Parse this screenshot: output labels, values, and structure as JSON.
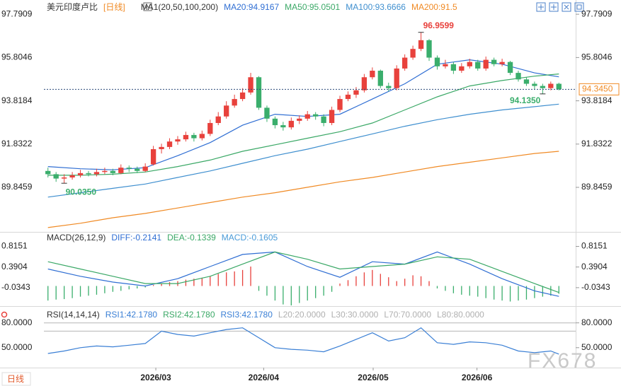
{
  "chart_data": [
    {
      "type": "candlestick",
      "title": "美元印度卢比",
      "period": "[日线]",
      "indicator": "MA1(20,50,100,200)",
      "xlim": [
        -0.5,
        63.5
      ],
      "xticks": [
        {
          "value": 13.3,
          "label": "2026/03"
        },
        {
          "value": 26.6,
          "label": "2026/04"
        },
        {
          "value": 40.1,
          "label": "2026/05"
        },
        {
          "value": 52.9,
          "label": "2026/06"
        }
      ],
      "ylim": [
        87.9,
        98.12
      ],
      "yticks": [
        97.7909,
        95.8046,
        93.8184,
        91.8322,
        89.8459
      ],
      "up_color": "#e8413c",
      "down_color": "#3aae6c",
      "open": [
        90.6,
        90.45,
        90.25,
        90.3,
        90.4,
        90.5,
        90.45,
        90.55,
        90.6,
        90.5,
        90.75,
        90.7,
        90.6,
        90.9,
        91.6,
        91.7,
        91.95,
        92.05,
        92.25,
        92.1,
        92.3,
        92.8,
        93.1,
        93.6,
        93.9,
        94.2,
        94.9,
        93.5,
        93.0,
        92.7,
        92.6,
        92.9,
        93.0,
        93.2,
        93.1,
        92.8,
        93.4,
        93.9,
        94.1,
        94.3,
        94.9,
        95.2,
        94.5,
        94.4,
        95.3,
        95.8,
        96.2,
        96.6,
        95.8,
        95.4,
        95.5,
        95.2,
        95.4,
        95.6,
        95.3,
        95.7,
        95.5,
        95.6,
        95.1,
        94.8,
        94.6,
        94.5,
        94.4,
        94.6
      ],
      "high": [
        90.75,
        90.55,
        90.45,
        90.55,
        90.65,
        90.6,
        90.7,
        90.75,
        90.7,
        90.9,
        90.85,
        90.8,
        90.95,
        91.75,
        91.85,
        92.1,
        92.2,
        92.4,
        92.35,
        92.45,
        92.95,
        93.3,
        93.8,
        94.1,
        94.4,
        95.1,
        94.95,
        93.6,
        93.1,
        92.85,
        93.05,
        93.15,
        93.35,
        93.3,
        93.2,
        93.55,
        94.05,
        94.25,
        94.45,
        95.05,
        95.35,
        95.25,
        94.65,
        95.45,
        95.95,
        96.35,
        96.9599,
        96.65,
        95.9,
        95.7,
        95.6,
        95.55,
        95.75,
        95.7,
        95.85,
        95.8,
        95.75,
        95.65,
        95.2,
        94.9,
        94.7,
        94.6,
        94.7,
        94.65
      ],
      "low": [
        90.3,
        90.1,
        90.035,
        90.2,
        90.3,
        90.35,
        90.35,
        90.45,
        90.4,
        90.45,
        90.55,
        90.5,
        90.55,
        90.85,
        91.4,
        91.6,
        91.8,
        91.95,
        91.95,
        92.0,
        92.2,
        92.7,
        93.0,
        93.5,
        93.8,
        94.1,
        93.4,
        92.85,
        92.55,
        92.45,
        92.5,
        92.75,
        92.9,
        92.95,
        92.65,
        92.7,
        93.3,
        93.8,
        93.95,
        94.2,
        94.8,
        94.4,
        94.25,
        94.3,
        95.2,
        95.7,
        96.1,
        95.65,
        95.25,
        95.3,
        95.05,
        95.1,
        95.3,
        95.2,
        95.2,
        95.4,
        95.4,
        95.0,
        94.7,
        94.5,
        94.35,
        94.135,
        94.3,
        94.3
      ],
      "close": [
        90.45,
        90.25,
        90.3,
        90.4,
        90.5,
        90.45,
        90.55,
        90.6,
        90.5,
        90.75,
        90.7,
        90.6,
        90.8,
        91.6,
        91.7,
        91.95,
        92.05,
        92.25,
        92.1,
        92.3,
        92.8,
        93.1,
        93.6,
        93.9,
        94.2,
        94.9,
        93.5,
        93.0,
        92.7,
        92.6,
        92.9,
        93.0,
        93.2,
        93.1,
        92.8,
        93.4,
        93.9,
        94.1,
        94.3,
        94.9,
        95.2,
        94.5,
        94.4,
        95.3,
        95.8,
        96.2,
        96.6,
        95.8,
        95.4,
        95.5,
        95.2,
        95.4,
        95.6,
        95.3,
        95.7,
        95.5,
        95.6,
        95.1,
        94.8,
        94.6,
        94.5,
        94.4,
        94.6,
        94.345
      ],
      "series": [
        {
          "name": "MA20:94.9167",
          "color": "#2f6ed3",
          "x": [
            0,
            4,
            8,
            12,
            16,
            20,
            24,
            28,
            32,
            36,
            40,
            44,
            48,
            52,
            56,
            60,
            63
          ],
          "values": [
            90.8,
            90.7,
            90.65,
            90.75,
            91.3,
            91.9,
            92.7,
            93.2,
            93.1,
            93.2,
            93.9,
            94.6,
            95.5,
            95.7,
            95.5,
            95.1,
            94.9167
          ]
        },
        {
          "name": "MA50:95.0501",
          "color": "#3aa866",
          "x": [
            0,
            4,
            8,
            12,
            16,
            20,
            24,
            28,
            32,
            36,
            40,
            44,
            48,
            52,
            56,
            60,
            63
          ],
          "values": [
            90.4,
            90.4,
            90.45,
            90.55,
            90.8,
            91.1,
            91.5,
            91.8,
            92.1,
            92.4,
            92.8,
            93.4,
            94.0,
            94.5,
            94.75,
            94.95,
            95.0501
          ]
        },
        {
          "name": "MA100:93.6666",
          "color": "#3f8fcf",
          "x": [
            0,
            4,
            8,
            12,
            16,
            20,
            24,
            28,
            32,
            36,
            40,
            44,
            48,
            52,
            56,
            60,
            63
          ],
          "values": [
            89.4,
            89.6,
            89.8,
            90.0,
            90.3,
            90.6,
            90.95,
            91.3,
            91.6,
            91.95,
            92.3,
            92.65,
            92.95,
            93.2,
            93.4,
            93.55,
            93.6666
          ]
        },
        {
          "name": "MA200:91.5",
          "color": "#f08a24",
          "x": [
            0,
            4,
            8,
            12,
            16,
            20,
            24,
            28,
            32,
            36,
            40,
            44,
            48,
            52,
            56,
            60,
            63
          ],
          "values": [
            88.0,
            88.2,
            88.45,
            88.65,
            88.9,
            89.15,
            89.4,
            89.6,
            89.85,
            90.1,
            90.3,
            90.55,
            90.8,
            91.0,
            91.2,
            91.4,
            91.5
          ]
        }
      ],
      "annotations": [
        {
          "index": 46,
          "value": 96.9599,
          "label": "96.9599",
          "color": "#e8413c",
          "position": "above-right"
        },
        {
          "index": 61,
          "value": 94.135,
          "label": "94.1350",
          "color": "#3aae6c",
          "position": "below-left"
        },
        {
          "index": 2,
          "value": 90.035,
          "label": "90.0350",
          "color": "#3aae6c",
          "position": "below-right"
        }
      ],
      "last": {
        "value": 94.345,
        "label": "94.3450",
        "color": "#f08a24"
      }
    },
    {
      "type": "macd",
      "title": "MACD(26,12,9)",
      "ylim": [
        -0.4,
        0.91
      ],
      "yticks": [
        0.8151,
        0.3904,
        -0.0343
      ],
      "series": [
        {
          "name": "DIFF:-0.2141",
          "color": "#2f6ed3",
          "x": [
            0,
            4,
            8,
            12,
            16,
            20,
            24,
            28,
            32,
            36,
            40,
            44,
            48,
            52,
            56,
            60,
            63
          ],
          "values": [
            0.35,
            0.2,
            0.08,
            0.0,
            0.15,
            0.4,
            0.65,
            0.7,
            0.4,
            0.18,
            0.5,
            0.45,
            0.7,
            0.45,
            0.15,
            -0.1,
            -0.2141
          ]
        },
        {
          "name": "DEA:-0.1339",
          "color": "#3aa866",
          "x": [
            0,
            4,
            8,
            12,
            16,
            20,
            24,
            28,
            32,
            36,
            40,
            44,
            48,
            52,
            56,
            60,
            63
          ],
          "values": [
            0.5,
            0.35,
            0.2,
            0.05,
            0.05,
            0.2,
            0.45,
            0.7,
            0.55,
            0.35,
            0.4,
            0.45,
            0.6,
            0.55,
            0.3,
            0.05,
            -0.1339
          ]
        }
      ],
      "histogram": {
        "name": "MACD:-0.1605",
        "color": "#4a9bd8",
        "up_color": "#e8413c",
        "down_color": "#3aae6c",
        "values": [
          -0.3,
          -0.28,
          -0.27,
          -0.25,
          -0.22,
          -0.2,
          -0.18,
          -0.15,
          -0.12,
          -0.1,
          -0.07,
          -0.05,
          -0.03,
          0.02,
          0.05,
          0.08,
          0.1,
          0.13,
          0.15,
          0.17,
          0.2,
          0.25,
          0.28,
          0.3,
          0.33,
          0.4,
          -0.1,
          -0.2,
          -0.3,
          -0.38,
          -0.4,
          -0.35,
          -0.3,
          -0.25,
          -0.2,
          -0.12,
          0.05,
          0.12,
          0.2,
          0.28,
          0.33,
          0.25,
          0.18,
          0.1,
          0.15,
          0.22,
          0.2,
          0.1,
          -0.05,
          -0.1,
          -0.15,
          -0.18,
          -0.2,
          -0.22,
          -0.25,
          -0.28,
          -0.3,
          -0.32,
          -0.3,
          -0.28,
          -0.25,
          -0.22,
          -0.2,
          -0.1605
        ]
      }
    },
    {
      "type": "line",
      "title": "RSI(14,14,14)",
      "ylim": [
        31,
        90
      ],
      "yticks": [
        {
          "value": 80,
          "label": "80.0000"
        },
        {
          "value": 50,
          "label": "50.0000"
        }
      ],
      "series": [
        {
          "name": "RSI1:42.1780",
          "color": "#3a7fd5",
          "x": [
            0,
            2,
            4,
            6,
            8,
            10,
            12,
            14,
            16,
            18,
            20,
            22,
            24,
            26,
            28,
            30,
            32,
            34,
            36,
            38,
            40,
            42,
            44,
            46,
            48,
            50,
            52,
            54,
            56,
            58,
            60,
            62,
            63
          ],
          "values": [
            43,
            46,
            50,
            52,
            51,
            53,
            55,
            70,
            66,
            64,
            68,
            72,
            74,
            62,
            50,
            48,
            47,
            45,
            52,
            60,
            68,
            58,
            62,
            74,
            56,
            54,
            57,
            56,
            53,
            46,
            44,
            46,
            42.178
          ]
        }
      ],
      "legend": [
        {
          "name": "RSI2:42.1780",
          "color": "#3aa866"
        },
        {
          "name": "RSI3:42.1780",
          "color": "#3a7fd5"
        }
      ],
      "levels": [
        {
          "value": 20,
          "label": "L20:20.0000"
        },
        {
          "value": 30,
          "label": "L30:30.0000"
        },
        {
          "value": 70,
          "label": "L70:70.0000"
        },
        {
          "value": 80,
          "label": "L80:80.0000"
        }
      ],
      "level_color": "#b5b5b5"
    }
  ],
  "footer_period": "日线",
  "watermark": "FX678"
}
